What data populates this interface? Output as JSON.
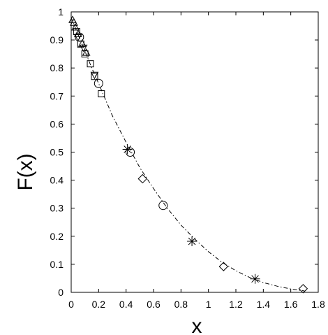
{
  "chart_data": {
    "type": "scatter",
    "title": "",
    "xlabel": "x",
    "ylabel": "F(x)",
    "xlim": [
      0,
      1.8
    ],
    "ylim": [
      0,
      1
    ],
    "x_ticks": [
      0,
      0.2,
      0.4,
      0.6,
      0.8,
      1,
      1.2,
      1.4,
      1.6,
      1.8
    ],
    "x_tick_labels": [
      "0",
      "0.2",
      "0.4",
      "0.6",
      "0.8",
      "1",
      "1.2",
      "1.4",
      "1.6",
      "1.8"
    ],
    "y_ticks": [
      0,
      0.1,
      0.2,
      0.3,
      0.4,
      0.5,
      0.6,
      0.7,
      0.8,
      0.9,
      1
    ],
    "y_tick_labels": [
      "0",
      "0.1",
      "0.2",
      "0.3",
      "0.4",
      "0.5",
      "0.6",
      "0.7",
      "0.8",
      "0.9",
      "1"
    ],
    "grid": false,
    "legend": "none",
    "curve": {
      "style": "dash-dot",
      "x": [
        0,
        0.05,
        0.1,
        0.15,
        0.2,
        0.3,
        0.4,
        0.5,
        0.6,
        0.7,
        0.8,
        0.9,
        1.0,
        1.1,
        1.2,
        1.3,
        1.4,
        1.5,
        1.6,
        1.7
      ],
      "y": [
        0.98,
        0.92,
        0.86,
        0.8,
        0.745,
        0.63,
        0.535,
        0.445,
        0.37,
        0.3,
        0.24,
        0.19,
        0.145,
        0.107,
        0.077,
        0.053,
        0.035,
        0.022,
        0.012,
        0.005
      ]
    },
    "series": [
      {
        "marker": "triangle",
        "x": [
          0.01,
          0.02,
          0.03,
          0.05,
          0.08,
          0.11
        ],
        "y": [
          0.972,
          0.962,
          0.945,
          0.922,
          0.887,
          0.855
        ]
      },
      {
        "marker": "square",
        "x": [
          0.04,
          0.07,
          0.1,
          0.14,
          0.17,
          0.22
        ],
        "y": [
          0.93,
          0.885,
          0.85,
          0.815,
          0.77,
          0.708
        ]
      },
      {
        "marker": "inverted-triangle",
        "x": [
          0.05,
          0.09,
          0.17
        ],
        "y": [
          0.91,
          0.872,
          0.775
        ]
      },
      {
        "marker": "circle",
        "x": [
          0.06,
          0.2,
          0.43,
          0.67
        ],
        "y": [
          0.91,
          0.745,
          0.5,
          0.31
        ]
      },
      {
        "marker": "asterisk",
        "x": [
          0.41,
          0.88,
          1.34
        ],
        "y": [
          0.51,
          0.182,
          0.048
        ]
      },
      {
        "marker": "diamond",
        "x": [
          0.52,
          1.11,
          1.69
        ],
        "y": [
          0.405,
          0.092,
          0.013
        ]
      }
    ]
  }
}
